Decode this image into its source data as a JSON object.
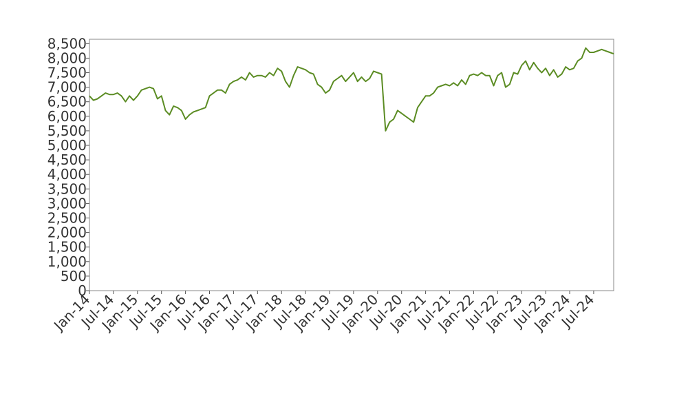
{
  "chart_data": {
    "type": "line",
    "x": [
      "2014-01",
      "2014-02",
      "2014-03",
      "2014-04",
      "2014-05",
      "2014-06",
      "2014-07",
      "2014-08",
      "2014-09",
      "2014-10",
      "2014-11",
      "2014-12",
      "2015-01",
      "2015-02",
      "2015-03",
      "2015-04",
      "2015-05",
      "2015-06",
      "2015-07",
      "2015-08",
      "2015-09",
      "2015-10",
      "2015-11",
      "2015-12",
      "2016-01",
      "2016-02",
      "2016-03",
      "2016-04",
      "2016-05",
      "2016-06",
      "2016-07",
      "2016-08",
      "2016-09",
      "2016-10",
      "2016-11",
      "2016-12",
      "2017-01",
      "2017-02",
      "2017-03",
      "2017-04",
      "2017-05",
      "2017-06",
      "2017-07",
      "2017-08",
      "2017-09",
      "2017-10",
      "2017-11",
      "2017-12",
      "2018-01",
      "2018-02",
      "2018-03",
      "2018-04",
      "2018-05",
      "2018-06",
      "2018-07",
      "2018-08",
      "2018-09",
      "2018-10",
      "2018-11",
      "2018-12",
      "2019-01",
      "2019-02",
      "2019-03",
      "2019-04",
      "2019-05",
      "2019-06",
      "2019-07",
      "2019-08",
      "2019-09",
      "2019-10",
      "2019-11",
      "2019-12",
      "2020-01",
      "2020-02",
      "2020-03",
      "2020-04",
      "2020-05",
      "2020-06",
      "2020-07",
      "2020-08",
      "2020-09",
      "2020-10",
      "2020-11",
      "2020-12",
      "2021-01",
      "2021-02",
      "2021-03",
      "2021-04",
      "2021-05",
      "2021-06",
      "2021-07",
      "2021-08",
      "2021-09",
      "2021-10",
      "2021-11",
      "2021-12",
      "2022-01",
      "2022-02",
      "2022-03",
      "2022-04",
      "2022-05",
      "2022-06",
      "2022-07",
      "2022-08",
      "2022-09",
      "2022-10",
      "2022-11",
      "2022-12",
      "2023-01",
      "2023-02",
      "2023-03",
      "2023-04",
      "2023-05",
      "2023-06",
      "2023-07",
      "2023-08",
      "2023-09",
      "2023-10",
      "2023-11",
      "2023-12",
      "2024-01",
      "2024-02",
      "2024-03",
      "2024-04",
      "2024-05",
      "2024-06",
      "2024-07",
      "2024-08",
      "2024-09",
      "2024-10",
      "2024-11",
      "2024-12"
    ],
    "series": [
      {
        "color": "#5b8c23",
        "values": [
          6700,
          6550,
          6600,
          6700,
          6800,
          6750,
          6750,
          6800,
          6700,
          6500,
          6700,
          6550,
          6700,
          6900,
          6950,
          7000,
          6950,
          6600,
          6700,
          6200,
          6050,
          6350,
          6300,
          6200,
          5900,
          6050,
          6150,
          6200,
          6250,
          6300,
          6700,
          6800,
          6900,
          6900,
          6800,
          7100,
          7200,
          7250,
          7350,
          7250,
          7500,
          7350,
          7400,
          7400,
          7350,
          7500,
          7400,
          7650,
          7550,
          7200,
          7000,
          7400,
          7700,
          7650,
          7600,
          7500,
          7450,
          7100,
          7000,
          6800,
          6900,
          7200,
          7300,
          7400,
          7200,
          7350,
          7500,
          7200,
          7350,
          7200,
          7300,
          7550,
          7500,
          7450,
          5500,
          5800,
          5900,
          6200,
          6100,
          6000,
          5900,
          5800,
          6300,
          6500,
          6700,
          6700,
          6800,
          7000,
          7050,
          7100,
          7050,
          7150,
          7050,
          7250,
          7100,
          7400,
          7450,
          7400,
          7500,
          7400,
          7400,
          7050,
          7400,
          7500,
          7000,
          7100,
          7500,
          7450,
          7750,
          7900,
          7600,
          7850,
          7650,
          7500,
          7650,
          7400,
          7600,
          7350,
          7450,
          7700,
          7600,
          7650,
          7900,
          8000,
          8350,
          8200,
          8200,
          8250,
          8300,
          8250,
          8200,
          8150
        ]
      }
    ],
    "xlim": [
      "2014-01",
      "2024-12"
    ],
    "xticks": [
      {
        "value": "2014-01",
        "label": "Jan-14"
      },
      {
        "value": "2014-07",
        "label": "Jul-14"
      },
      {
        "value": "2015-01",
        "label": "Jan-15"
      },
      {
        "value": "2015-07",
        "label": "Jul-15"
      },
      {
        "value": "2016-01",
        "label": "Jan-16"
      },
      {
        "value": "2016-07",
        "label": "Jul-16"
      },
      {
        "value": "2017-01",
        "label": "Jan-17"
      },
      {
        "value": "2017-07",
        "label": "Jul-17"
      },
      {
        "value": "2018-01",
        "label": "Jan-18"
      },
      {
        "value": "2018-07",
        "label": "Jul-18"
      },
      {
        "value": "2019-01",
        "label": "Jan-19"
      },
      {
        "value": "2019-07",
        "label": "Jul-19"
      },
      {
        "value": "2020-01",
        "label": "Jan-20"
      },
      {
        "value": "2020-07",
        "label": "Jul-20"
      },
      {
        "value": "2021-01",
        "label": "Jan-21"
      },
      {
        "value": "2021-07",
        "label": "Jul-21"
      },
      {
        "value": "2022-01",
        "label": "Jan-22"
      },
      {
        "value": "2022-07",
        "label": "Jul-22"
      },
      {
        "value": "2023-01",
        "label": "Jan-23"
      },
      {
        "value": "2023-07",
        "label": "Jul-23"
      },
      {
        "value": "2024-01",
        "label": "Jan-24"
      },
      {
        "value": "2024-07",
        "label": "Jul-24"
      }
    ],
    "ylim": [
      0,
      8650
    ],
    "yticks": [
      0,
      500,
      {
        "value": 1000,
        "label": "1,000"
      },
      {
        "value": 1500,
        "label": "1,500"
      },
      {
        "value": 2000,
        "label": "2,000"
      },
      {
        "value": 2500,
        "label": "2,500"
      },
      {
        "value": 3000,
        "label": "3,000"
      },
      {
        "value": 3500,
        "label": "3,500"
      },
      {
        "value": 4000,
        "label": "4,000"
      },
      {
        "value": 4500,
        "label": "4,500"
      },
      {
        "value": 5000,
        "label": "5,000"
      },
      {
        "value": 5500,
        "label": "5,500"
      },
      {
        "value": 6000,
        "label": "6,000"
      },
      {
        "value": 6500,
        "label": "6,500"
      },
      {
        "value": 7000,
        "label": "7,000"
      },
      {
        "value": 7500,
        "label": "7,500"
      },
      {
        "value": 8000,
        "label": "8,000"
      },
      {
        "value": 8500,
        "label": "8,500"
      }
    ],
    "grid": false
  }
}
